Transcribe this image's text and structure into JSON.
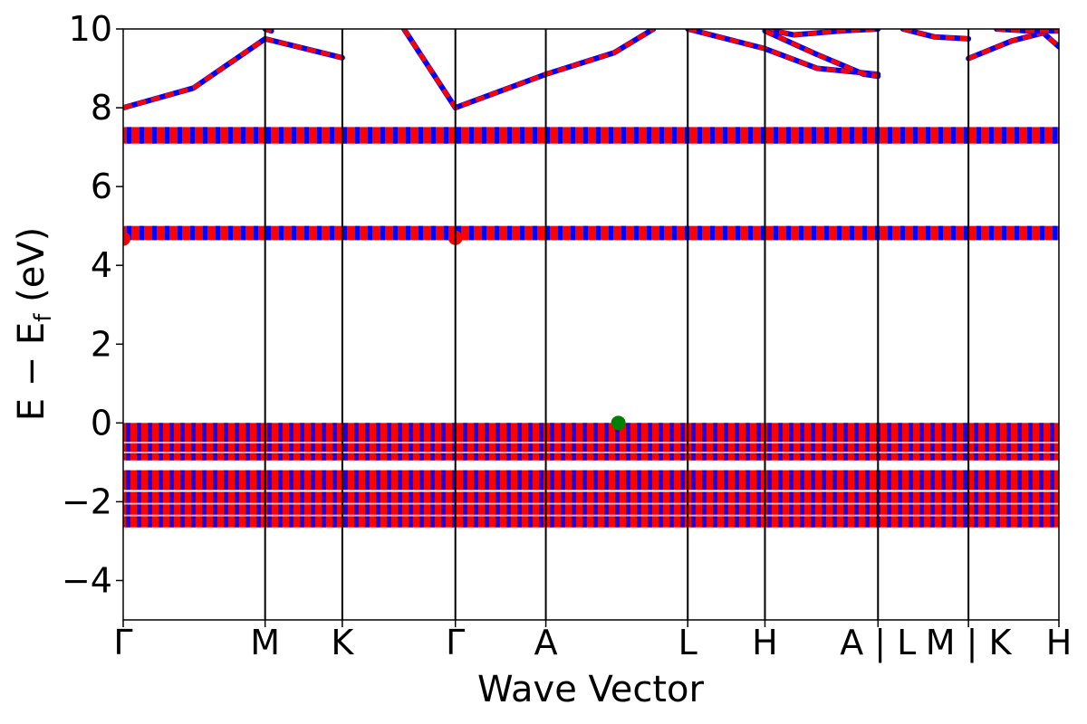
{
  "chart_data": {
    "type": "line",
    "xlabel": "Wave Vector",
    "ylabel_main": "E − E",
    "ylabel_sub": "f",
    "ylabel_unit": " (eV)",
    "ylim": [
      -5,
      10
    ],
    "xlim": [
      0,
      12
    ],
    "y_ticks": [
      {
        "value": -4,
        "label": "−4"
      },
      {
        "value": -2,
        "label": "−2"
      },
      {
        "value": 0,
        "label": "0"
      },
      {
        "value": 2,
        "label": "2"
      },
      {
        "value": 4,
        "label": "4"
      },
      {
        "value": 6,
        "label": "6"
      },
      {
        "value": 8,
        "label": "8"
      },
      {
        "value": 10,
        "label": "10"
      }
    ],
    "x_ticks": [
      {
        "value": 0,
        "label": "Γ"
      },
      {
        "value": 1.82,
        "label": "M"
      },
      {
        "value": 2.81,
        "label": "K"
      },
      {
        "value": 4.26,
        "label": "Γ"
      },
      {
        "value": 5.42,
        "label": "A"
      },
      {
        "value": 7.24,
        "label": "L"
      },
      {
        "value": 8.23,
        "label": "H"
      },
      {
        "value": 9.68,
        "label": "A | L"
      },
      {
        "value": 10.84,
        "label": "M | K"
      },
      {
        "value": 12.0,
        "label": "H"
      }
    ],
    "grid": false,
    "colors": {
      "spin_up": "#0000ff",
      "spin_down": "#ff0000",
      "marker_vbm": "#008000",
      "marker_cbm": "#ff0000"
    },
    "flat_bands": [
      {
        "y": 7.3,
        "width_ev": 0.14
      },
      {
        "y": 4.82,
        "width_ev": 0.12
      }
    ],
    "valence_blocks": [
      {
        "ymax": 0.0,
        "ymin": -0.95
      },
      {
        "ymax": -1.2,
        "ymin": -1.7
      },
      {
        "ymax": -1.75,
        "ymin": -2.65
      }
    ],
    "conduction_bands": [
      {
        "points": [
          [
            0,
            8.0
          ],
          [
            0.9,
            8.5
          ],
          [
            1.82,
            9.75
          ],
          [
            2.81,
            9.27
          ]
        ]
      },
      {
        "points": [
          [
            1.82,
            10.0
          ],
          [
            1.9,
            9.95
          ]
        ]
      },
      {
        "points": [
          [
            3.6,
            10.0
          ],
          [
            4.26,
            8.0
          ],
          [
            5.42,
            8.85
          ],
          [
            6.3,
            9.4
          ],
          [
            6.8,
            10.0
          ]
        ]
      },
      {
        "points": [
          [
            7.24,
            10.0
          ],
          [
            8.23,
            9.5
          ],
          [
            8.9,
            9.0
          ],
          [
            9.68,
            8.85
          ]
        ]
      },
      {
        "points": [
          [
            8.23,
            10.0
          ],
          [
            8.6,
            9.85
          ],
          [
            9.2,
            9.95
          ],
          [
            9.68,
            10.0
          ]
        ]
      },
      {
        "points": [
          [
            8.23,
            9.95
          ],
          [
            8.9,
            9.35
          ],
          [
            9.5,
            8.85
          ],
          [
            9.68,
            8.8
          ]
        ]
      },
      {
        "points": [
          [
            10.0,
            10.0
          ],
          [
            10.4,
            9.8
          ],
          [
            10.84,
            9.75
          ]
        ]
      },
      {
        "points": [
          [
            10.84,
            9.25
          ],
          [
            11.4,
            9.7
          ],
          [
            11.8,
            9.9
          ],
          [
            12.0,
            9.55
          ]
        ]
      },
      {
        "points": [
          [
            11.2,
            10.0
          ],
          [
            11.6,
            9.95
          ],
          [
            12.0,
            9.95
          ]
        ]
      }
    ],
    "markers": [
      {
        "x": 6.35,
        "y": 0.0,
        "label": "vbm"
      },
      {
        "x": 0.0,
        "y": 4.68,
        "label": "cbm"
      },
      {
        "x": 4.26,
        "y": 4.7,
        "label": "cbm"
      }
    ]
  }
}
